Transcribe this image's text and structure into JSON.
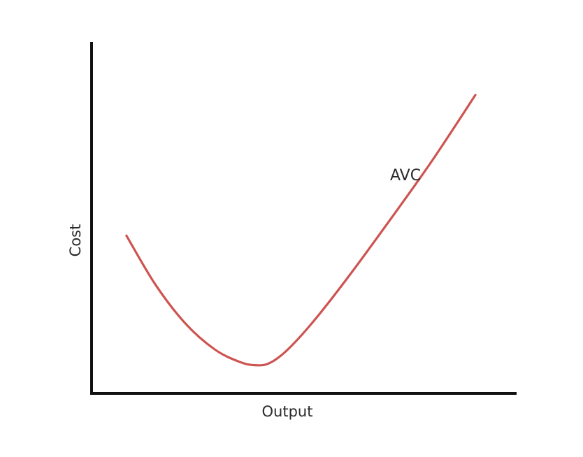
{
  "chart_data": {
    "type": "line",
    "xlabel": "Output",
    "ylabel": "Cost",
    "xlim": [
      0,
      100
    ],
    "ylim": [
      0,
      100
    ],
    "grid": false,
    "legend": "none",
    "series": [
      {
        "name": "AVC",
        "color": "#cd5450",
        "x": [
          8.2,
          15,
          22,
          29,
          35,
          38.9,
          42,
          46,
          52,
          60,
          70,
          80,
          90.3
        ],
        "y": [
          44.9,
          31,
          20,
          12.5,
          8.9,
          8.0,
          8.7,
          12.3,
          20.2,
          32.5,
          49,
          66,
          84.9
        ]
      }
    ],
    "axis_color": "#111111"
  }
}
